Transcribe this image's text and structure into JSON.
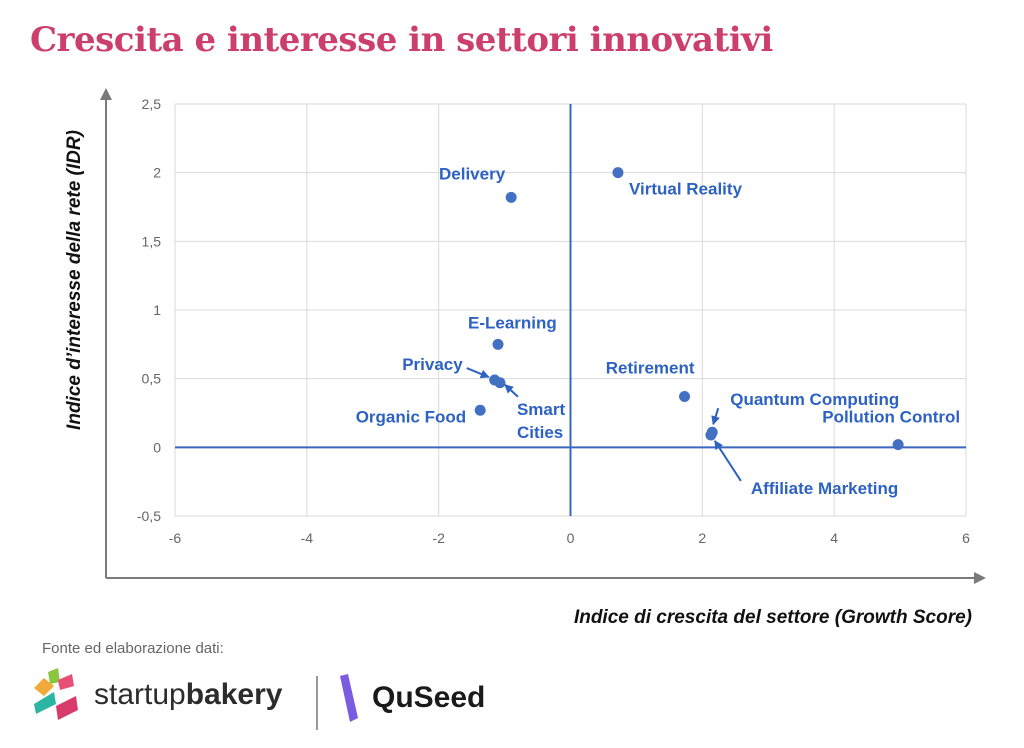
{
  "title": "Crescita e interesse in settori innovativi",
  "source_label": "Fonte ed elaborazione dati:",
  "logos": {
    "startup_prefix": "startup",
    "startup_suffix": "bakery",
    "quseed": "QuSeed"
  },
  "colors": {
    "title": "#cc3e6c",
    "points": "#4470c4",
    "labels": "#2d62c3",
    "zero_axes": "#3a66c0",
    "grid": "#d9d9d9",
    "outer_axes": "#7a7a7a"
  },
  "chart_data": {
    "type": "scatter",
    "xlabel": "Indice di crescita del settore (Growth Score)",
    "ylabel": "Indice d’interesse della rete  (IDR)",
    "xlim": [
      -6,
      6
    ],
    "ylim": [
      -0.5,
      2.5
    ],
    "xticks": [
      "-6",
      "-4",
      "-2",
      "0",
      "2",
      "4",
      "6"
    ],
    "yticks": [
      "2,5",
      "2",
      "1,5",
      "1",
      "0,5",
      "0",
      "-0,5"
    ],
    "grid": true,
    "points": [
      {
        "label": "Delivery",
        "x": -0.9,
        "y": 1.82
      },
      {
        "label": "Virtual Reality",
        "x": 0.72,
        "y": 2.0
      },
      {
        "label": "E-Learning",
        "x": -1.1,
        "y": 0.75
      },
      {
        "label": "Privacy",
        "x": -1.15,
        "y": 0.49
      },
      {
        "label": "Smart Cities",
        "x": -1.07,
        "y": 0.47
      },
      {
        "label": "Organic Food",
        "x": -1.37,
        "y": 0.27
      },
      {
        "label": "Retirement",
        "x": 1.73,
        "y": 0.37
      },
      {
        "label": "Quantum Computing",
        "x": 2.15,
        "y": 0.11
      },
      {
        "label": "Affiliate Marketing",
        "x": 2.13,
        "y": 0.09
      },
      {
        "label": "Pollution Control",
        "x": 4.97,
        "y": 0.02
      }
    ]
  }
}
